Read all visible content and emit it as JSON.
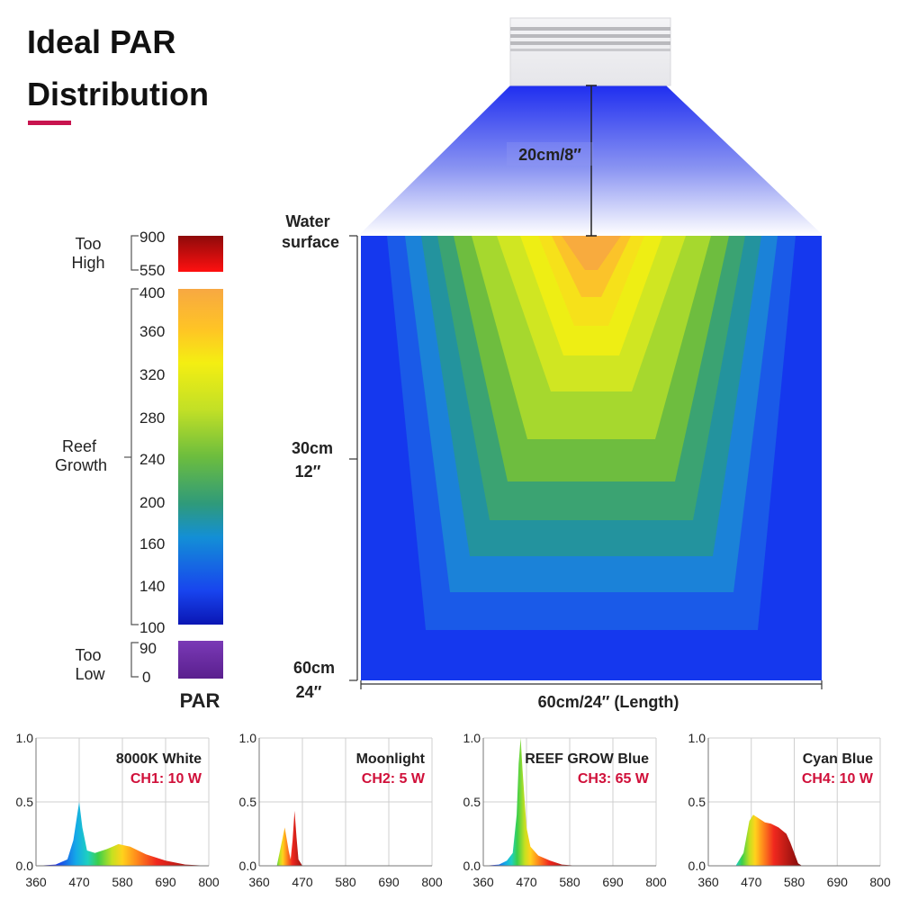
{
  "title": {
    "line1": "Ideal PAR",
    "line2": "Distribution"
  },
  "colors": {
    "accent": "#c8144f",
    "label_red": "#d0103a"
  },
  "legend": {
    "unit_label": "PAR",
    "groups": [
      {
        "label_line1": "Too",
        "label_line2": "High",
        "range": [
          550,
          900
        ]
      },
      {
        "label_line1": "Reef",
        "label_line2": "Growth",
        "range": [
          100,
          400
        ]
      },
      {
        "label_line1": "Too",
        "label_line2": "Low",
        "range": [
          0,
          90
        ]
      }
    ],
    "ticks": [
      "900",
      "550",
      "400",
      "360",
      "320",
      "280",
      "240",
      "200",
      "160",
      "140",
      "100",
      "90",
      "0"
    ]
  },
  "diagram": {
    "fixture_distance": "20cm/8″",
    "water_label_line1": "Water",
    "water_label_line2": "surface",
    "depth_mid_line1": "30cm",
    "depth_mid_line2": "12″",
    "depth_bottom_line1": "60cm",
    "depth_bottom_line2": "24″",
    "length_label": "60cm/24″  (Length)"
  },
  "chart_data": [
    {
      "type": "area",
      "title": "8000K White",
      "subtitle": "CH1: 10 W",
      "x": [
        360,
        410,
        440,
        455,
        465,
        470,
        478,
        490,
        510,
        540,
        570,
        600,
        640,
        690,
        740,
        800
      ],
      "y": [
        0,
        0.01,
        0.05,
        0.2,
        0.4,
        0.5,
        0.3,
        0.12,
        0.1,
        0.13,
        0.17,
        0.15,
        0.09,
        0.04,
        0.01,
        0
      ],
      "xticks": [
        "360",
        "470",
        "580",
        "690",
        "800"
      ],
      "yticks": [
        "0.0",
        "0.5",
        "1.0"
      ],
      "xlim": [
        360,
        800
      ],
      "ylim": [
        0,
        1
      ]
    },
    {
      "type": "area",
      "title": "Moonlight",
      "subtitle": "CH2: 5 W",
      "x": [
        360,
        405,
        415,
        425,
        435,
        440,
        445,
        450,
        455,
        460,
        470,
        480
      ],
      "y": [
        0,
        0,
        0.15,
        0.3,
        0.12,
        0.05,
        0.2,
        0.43,
        0.22,
        0.05,
        0,
        0
      ],
      "xticks": [
        "360",
        "470",
        "580",
        "690",
        "800"
      ],
      "yticks": [
        "0.0",
        "0.5",
        "1.0"
      ],
      "xlim": [
        360,
        800
      ],
      "ylim": [
        0,
        1
      ]
    },
    {
      "type": "area",
      "title": "REEF GROW Blue",
      "subtitle": "CH3: 65 W",
      "x": [
        360,
        400,
        420,
        435,
        445,
        450,
        455,
        460,
        470,
        480,
        500,
        530,
        560,
        600
      ],
      "y": [
        0,
        0.01,
        0.04,
        0.1,
        0.4,
        0.8,
        1.0,
        0.75,
        0.3,
        0.15,
        0.08,
        0.04,
        0.01,
        0
      ],
      "xticks": [
        "360",
        "470",
        "580",
        "690",
        "800"
      ],
      "yticks": [
        "0.0",
        "0.5",
        "1.0"
      ],
      "xlim": [
        360,
        800
      ],
      "ylim": [
        0,
        1
      ]
    },
    {
      "type": "area",
      "title": "Cyan Blue",
      "subtitle": "CH4: 10 W",
      "x": [
        360,
        430,
        450,
        465,
        475,
        490,
        505,
        520,
        540,
        560,
        570,
        580,
        590,
        600
      ],
      "y": [
        0,
        0,
        0.1,
        0.35,
        0.4,
        0.37,
        0.34,
        0.33,
        0.3,
        0.25,
        0.18,
        0.1,
        0.02,
        0
      ],
      "xticks": [
        "360",
        "470",
        "580",
        "690",
        "800"
      ],
      "yticks": [
        "0.0",
        "0.5",
        "1.0"
      ],
      "xlim": [
        360,
        800
      ],
      "ylim": [
        0,
        1
      ]
    }
  ]
}
